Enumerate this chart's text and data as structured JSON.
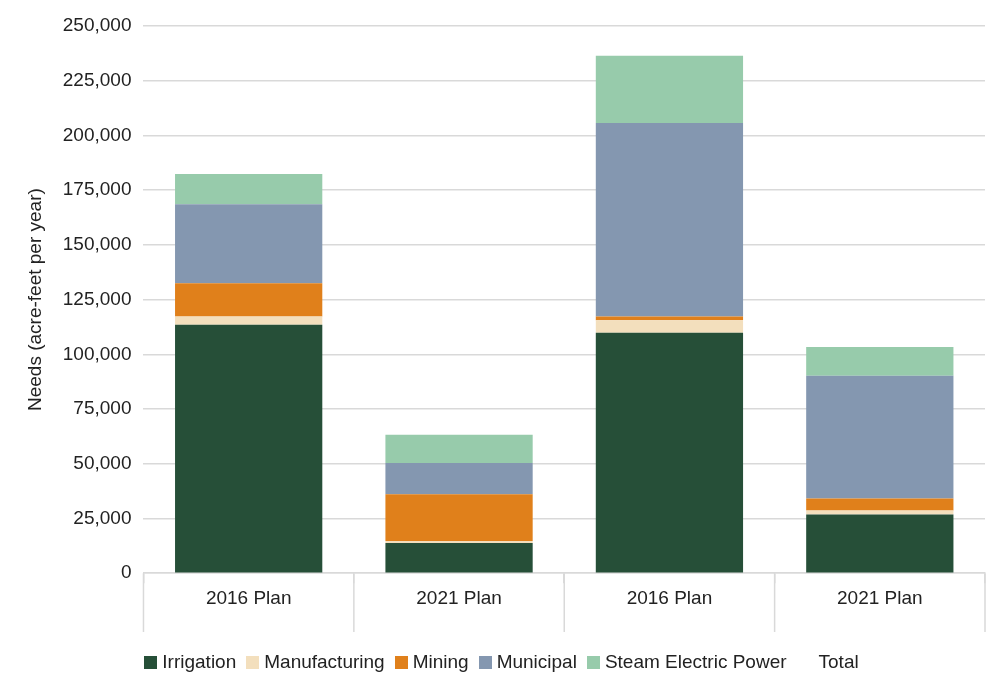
{
  "chart_data": {
    "type": "bar",
    "stacked": true,
    "ylabel": "Needs (acre-feet per year)",
    "categories": [
      "2016 Plan",
      "2021 Plan",
      "2016 Plan",
      "2021 Plan"
    ],
    "series": [
      {
        "name": "Irrigation",
        "color": "#264f38",
        "values": [
          113500,
          13800,
          109900,
          26800
        ]
      },
      {
        "name": "Manufacturing",
        "color": "#f3dfbd",
        "values": [
          3800,
          900,
          5700,
          1900
        ]
      },
      {
        "name": "Mining",
        "color": "#e0801b",
        "values": [
          15200,
          21400,
          1700,
          5400
        ]
      },
      {
        "name": "Municipal",
        "color": "#8497b0",
        "values": [
          36100,
          14300,
          88400,
          56100
        ]
      },
      {
        "name": "Steam Electric Power",
        "color": "#97cbab",
        "values": [
          13800,
          12800,
          30700,
          13100
        ]
      }
    ],
    "ylim": [
      0,
      250000
    ],
    "yticks": [
      0,
      {
        "value": 25000,
        "label": "25,000"
      },
      {
        "value": 50000,
        "label": "50,000"
      },
      {
        "value": 75000,
        "label": "75,000"
      },
      {
        "value": 100000,
        "label": "100,000"
      },
      {
        "value": 125000,
        "label": "125,000"
      },
      {
        "value": 150000,
        "label": "150,000"
      },
      {
        "value": 175000,
        "label": "175,000"
      },
      {
        "value": 200000,
        "label": "200,000"
      },
      {
        "value": 225000,
        "label": "225,000"
      },
      {
        "value": 250000,
        "label": "250,000"
      }
    ],
    "grid": "y",
    "legend": "bottom",
    "annotations": [
      "Total"
    ]
  }
}
